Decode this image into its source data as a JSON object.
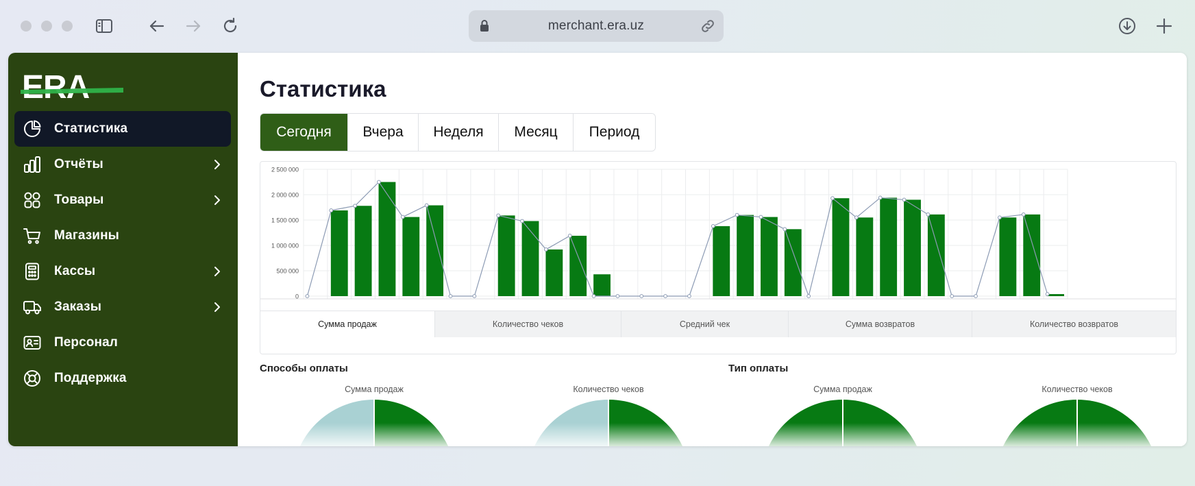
{
  "browser": {
    "url": "merchant.era.uz"
  },
  "logo": {
    "text": "ERA"
  },
  "sidebar": {
    "items": [
      {
        "label": "Статистика",
        "icon": "pie-chart-icon",
        "active": true,
        "has_submenu": false
      },
      {
        "label": "Отчёты",
        "icon": "bar-chart-icon",
        "active": false,
        "has_submenu": true
      },
      {
        "label": "Товары",
        "icon": "grid-icon",
        "active": false,
        "has_submenu": true
      },
      {
        "label": "Магазины",
        "icon": "cart-icon",
        "active": false,
        "has_submenu": false
      },
      {
        "label": "Кассы",
        "icon": "calculator-icon",
        "active": false,
        "has_submenu": true
      },
      {
        "label": "Заказы",
        "icon": "truck-icon",
        "active": false,
        "has_submenu": true
      },
      {
        "label": "Персонал",
        "icon": "id-card-icon",
        "active": false,
        "has_submenu": false
      },
      {
        "label": "Поддержка",
        "icon": "lifebuoy-icon",
        "active": false,
        "has_submenu": false
      }
    ]
  },
  "main": {
    "title": "Статистика",
    "period_tabs": [
      {
        "label": "Сегодня",
        "active": true
      },
      {
        "label": "Вчера",
        "active": false
      },
      {
        "label": "Неделя",
        "active": false
      },
      {
        "label": "Месяц",
        "active": false
      },
      {
        "label": "Период",
        "active": false
      }
    ],
    "metric_tabs": [
      {
        "label": "Сумма продаж",
        "active": true
      },
      {
        "label": "Количество чеков",
        "active": false
      },
      {
        "label": "Средний чек",
        "active": false
      },
      {
        "label": "Сумма возвратов",
        "active": false
      },
      {
        "label": "Количество возвратов",
        "active": false
      }
    ],
    "payment_methods": {
      "title": "Способы оплаты",
      "charts": [
        {
          "label": "Сумма продаж"
        },
        {
          "label": "Количество чеков"
        }
      ]
    },
    "payment_type": {
      "title": "Тип оплаты",
      "charts": [
        {
          "label": "Сумма продаж"
        },
        {
          "label": "Количество чеков"
        }
      ]
    }
  },
  "colors": {
    "sidebar_bg": "#2a4411",
    "active_nav": "#111827",
    "accent": "#2f5e17",
    "bar": "#077a13",
    "line": "#8c9bb4",
    "pie_light": "#a9d1d3",
    "pie_dark": "#077a13"
  },
  "chart_data": {
    "type": "bar",
    "yticks": [
      "2 500 000",
      "2 000 000",
      "1 500 000",
      "1 000 000",
      "500 000",
      "0"
    ],
    "ylim": [
      0,
      2500000
    ],
    "grid": true,
    "values": [
      0,
      1690000,
      1780000,
      2250000,
      1560000,
      1790000,
      0,
      0,
      1590000,
      1480000,
      920000,
      1190000,
      430000,
      0,
      0,
      0,
      0,
      1380000,
      1600000,
      1560000,
      1320000,
      0,
      1930000,
      1550000,
      1940000,
      1900000,
      1610000,
      0,
      0,
      1550000,
      1610000,
      40000
    ],
    "line_values": [
      0,
      1690000,
      1780000,
      2250000,
      1560000,
      1790000,
      0,
      0,
      1590000,
      1480000,
      920000,
      1190000,
      0,
      0,
      0,
      0,
      0,
      1380000,
      1600000,
      1560000,
      1320000,
      0,
      1930000,
      1550000,
      1940000,
      1900000,
      1610000,
      0,
      0,
      1550000,
      1610000,
      40000
    ]
  }
}
